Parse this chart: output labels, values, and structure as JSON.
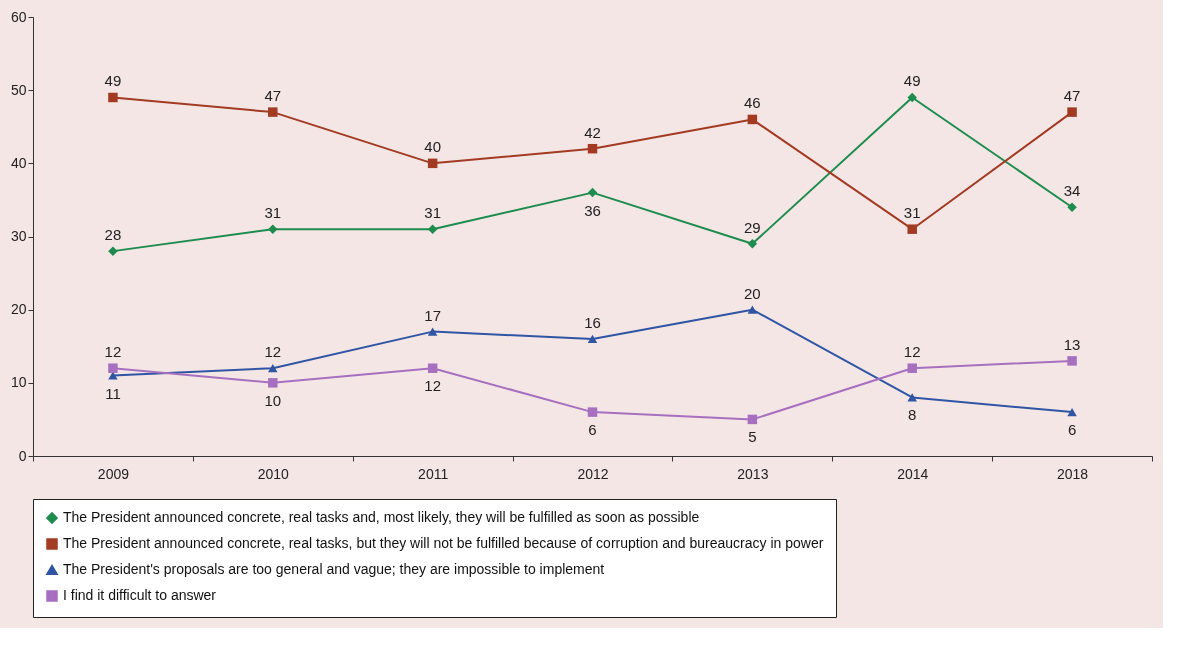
{
  "chart_data": {
    "type": "line",
    "categories": [
      "2009",
      "2010",
      "2011",
      "2012",
      "2013",
      "2014",
      "2018"
    ],
    "series": [
      {
        "name": "The President announced concrete, real tasks and, most likely, they will be fulfilled as soon as possible",
        "color": "#1e8c4e",
        "marker": "diamond",
        "values": [
          28,
          31,
          31,
          36,
          29,
          49,
          34
        ]
      },
      {
        "name": "The President announced concrete, real tasks, but they will not be fulfilled because of corruption and bureaucracy in power",
        "color": "#a33a22",
        "marker": "square",
        "values": [
          49,
          47,
          40,
          42,
          46,
          31,
          47
        ]
      },
      {
        "name": "The President's proposals are too general and vague; they are impossible to implement",
        "color": "#2f55a4",
        "marker": "triangle",
        "values": [
          11,
          12,
          17,
          16,
          20,
          8,
          6
        ]
      },
      {
        "name": "I find it difficult to answer",
        "color": "#a66fbf",
        "marker": "square",
        "values": [
          12,
          10,
          12,
          6,
          5,
          12,
          13
        ]
      }
    ],
    "ylim": [
      0,
      60
    ],
    "yticks": [
      0,
      10,
      20,
      30,
      40,
      50,
      60
    ],
    "data_labels": true,
    "grid": false,
    "legend": "bottom",
    "line_style": "solid"
  }
}
